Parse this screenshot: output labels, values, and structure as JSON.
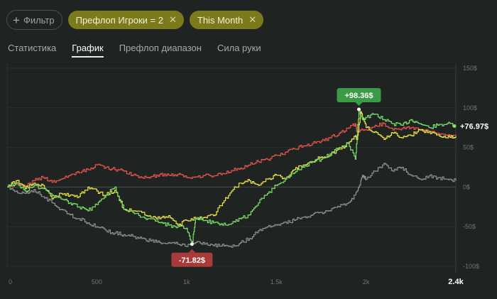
{
  "filter": {
    "label": "Фильтр"
  },
  "chips": [
    {
      "label": "Префлоп Игроки = 2"
    },
    {
      "label": "This Month"
    }
  ],
  "tabs": [
    {
      "label": "Статистика"
    },
    {
      "label": "График"
    },
    {
      "label": "Префлоп диапазон"
    },
    {
      "label": "Сила руки"
    }
  ],
  "colors": {
    "red": "#e9564f",
    "yellow": "#f0e94a",
    "green": "#7ee36a",
    "gray": "#8e9290",
    "max_badge": "#3c9a46",
    "min_badge": "#a93a3a"
  },
  "chart_data": {
    "type": "line",
    "xlim": [
      0,
      2500
    ],
    "ylim": [
      -100,
      150
    ],
    "x_ticks": [
      "0",
      "500",
      "1k",
      "1.5k",
      "2k",
      "2.4k"
    ],
    "y_ticks": [
      "150$",
      "100$",
      "50$",
      "0$",
      "-50$",
      "-100$"
    ],
    "annotations": {
      "max": "+98.36$",
      "min": "-71.82$",
      "end": "+76.97$"
    },
    "series": [
      {
        "key": "red",
        "x": [
          0,
          50,
          100,
          150,
          200,
          250,
          300,
          350,
          400,
          450,
          500,
          550,
          600,
          650,
          700,
          750,
          800,
          850,
          900,
          950,
          1000,
          1050,
          1100,
          1150,
          1200,
          1250,
          1300,
          1350,
          1400,
          1450,
          1500,
          1550,
          1600,
          1650,
          1700,
          1750,
          1800,
          1850,
          1900,
          1940,
          1950,
          2000,
          2050,
          2100,
          2150,
          2200,
          2250,
          2300,
          2350,
          2400,
          2450,
          2500
        ],
        "y": [
          0,
          5,
          0,
          8,
          12,
          6,
          10,
          15,
          18,
          22,
          28,
          25,
          22,
          20,
          15,
          12,
          13,
          16,
          15,
          16,
          12,
          13,
          15,
          14,
          17,
          21,
          24,
          28,
          32,
          35,
          40,
          44,
          48,
          52,
          55,
          58,
          62,
          68,
          74,
          80,
          70,
          72,
          78,
          80,
          72,
          74,
          75,
          72,
          70,
          68,
          65,
          63
        ]
      },
      {
        "key": "yellow",
        "x": [
          0,
          50,
          100,
          150,
          200,
          250,
          300,
          350,
          400,
          450,
          500,
          550,
          600,
          650,
          700,
          750,
          800,
          850,
          900,
          950,
          1000,
          1050,
          1100,
          1150,
          1200,
          1250,
          1300,
          1350,
          1400,
          1450,
          1500,
          1550,
          1600,
          1650,
          1700,
          1750,
          1800,
          1850,
          1900,
          1940,
          1950,
          1970,
          2000,
          2050,
          2100,
          2150,
          2200,
          2250,
          2300,
          2350,
          2400,
          2450,
          2500
        ],
        "y": [
          0,
          8,
          -2,
          5,
          2,
          -15,
          -8,
          -10,
          -12,
          0,
          -5,
          -10,
          -4,
          -28,
          -30,
          -32,
          -38,
          -40,
          -36,
          -48,
          -42,
          -40,
          -38,
          -36,
          -20,
          -5,
          5,
          8,
          2,
          10,
          15,
          10,
          22,
          28,
          32,
          38,
          40,
          48,
          55,
          65,
          60,
          95,
          75,
          70,
          60,
          68,
          62,
          65,
          72,
          70,
          66,
          62,
          64
        ]
      },
      {
        "key": "green",
        "x": [
          0,
          50,
          100,
          150,
          200,
          250,
          300,
          350,
          400,
          450,
          500,
          550,
          600,
          650,
          700,
          750,
          800,
          850,
          900,
          950,
          1000,
          1030,
          1050,
          1100,
          1150,
          1200,
          1250,
          1300,
          1350,
          1400,
          1450,
          1500,
          1550,
          1600,
          1650,
          1700,
          1750,
          1800,
          1850,
          1900,
          1940,
          1960,
          1980,
          2000,
          2050,
          2100,
          2150,
          2200,
          2250,
          2300,
          2350,
          2400,
          2450,
          2500
        ],
        "y": [
          0,
          5,
          -5,
          2,
          -2,
          -10,
          -15,
          -20,
          -25,
          -30,
          -22,
          -10,
          0,
          -28,
          -32,
          -38,
          -40,
          -45,
          -48,
          -50,
          -52,
          -72,
          -40,
          -42,
          -45,
          -48,
          -46,
          -40,
          -35,
          -20,
          -8,
          2,
          10,
          18,
          25,
          32,
          35,
          42,
          50,
          55,
          35,
          98,
          85,
          88,
          92,
          85,
          80,
          78,
          85,
          80,
          75,
          78,
          80,
          77
        ]
      },
      {
        "key": "gray",
        "x": [
          0,
          50,
          100,
          150,
          200,
          250,
          300,
          350,
          400,
          450,
          500,
          550,
          600,
          650,
          700,
          750,
          800,
          850,
          900,
          950,
          1000,
          1050,
          1100,
          1150,
          1200,
          1250,
          1300,
          1350,
          1400,
          1450,
          1500,
          1550,
          1600,
          1650,
          1700,
          1750,
          1800,
          1850,
          1900,
          1940,
          1960,
          1980,
          2000,
          2050,
          2100,
          2150,
          2200,
          2250,
          2300,
          2350,
          2400,
          2450,
          2500
        ],
        "y": [
          0,
          -5,
          -8,
          -3,
          -12,
          -20,
          -28,
          -35,
          -40,
          -45,
          -50,
          -55,
          -58,
          -60,
          -62,
          -65,
          -68,
          -70,
          -70,
          -72,
          -75,
          -70,
          -72,
          -74,
          -72,
          -76,
          -70,
          -65,
          -55,
          -50,
          -48,
          -44,
          -42,
          -38,
          -35,
          -32,
          -30,
          -25,
          -20,
          -10,
          0,
          15,
          10,
          20,
          30,
          20,
          25,
          15,
          10,
          14,
          12,
          10,
          8
        ]
      }
    ]
  }
}
